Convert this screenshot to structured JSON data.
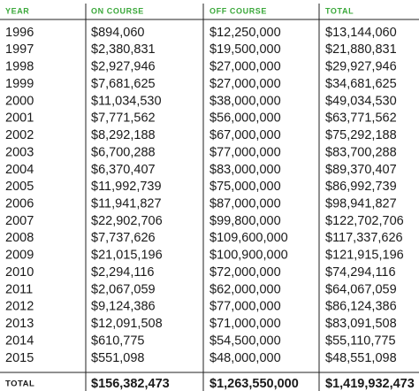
{
  "table": {
    "columns": [
      "YEAR",
      "ON COURSE",
      "OFF COURSE",
      "TOTAL"
    ],
    "rows": [
      [
        "1996",
        "$894,060",
        "$12,250,000",
        "$13,144,060"
      ],
      [
        "1997",
        "$2,380,831",
        "$19,500,000",
        "$21,880,831"
      ],
      [
        "1998",
        "$2,927,946",
        "$27,000,000",
        "$29,927,946"
      ],
      [
        "1999",
        "$7,681,625",
        "$27,000,000",
        "$34,681,625"
      ],
      [
        "2000",
        "$11,034,530",
        "$38,000,000",
        "$49,034,530"
      ],
      [
        "2001",
        "$7,771,562",
        "$56,000,000",
        "$63,771,562"
      ],
      [
        "2002",
        "$8,292,188",
        "$67,000,000",
        "$75,292,188"
      ],
      [
        "2003",
        "$6,700,288",
        "$77,000,000",
        "$83,700,288"
      ],
      [
        "2004",
        "$6,370,407",
        "$83,000,000",
        "$89,370,407"
      ],
      [
        "2005",
        "$11,992,739",
        "$75,000,000",
        "$86,992,739"
      ],
      [
        "2006",
        "$11,941,827",
        "$87,000,000",
        "$98,941,827"
      ],
      [
        "2007",
        "$22,902,706",
        "$99,800,000",
        "$122,702,706"
      ],
      [
        "2008",
        "$7,737,626",
        "$109,600,000",
        "$117,337,626"
      ],
      [
        "2009",
        "$21,015,196",
        "$100,900,000",
        "$121,915,196"
      ],
      [
        "2010",
        "$2,294,116",
        "$72,000,000",
        "$74,294,116"
      ],
      [
        "2011",
        "$2,067,059",
        "$62,000,000",
        "$64,067,059"
      ],
      [
        "2012",
        "$9,124,386",
        "$77,000,000",
        "$86,124,386"
      ],
      [
        "2013",
        "$12,091,508",
        "$71,000,000",
        "$83,091,508"
      ],
      [
        "2014",
        "$610,775",
        "$54,500,000",
        "$55,110,775"
      ],
      [
        "2015",
        "$551,098",
        "$48,000,000",
        "$48,551,098"
      ]
    ],
    "total": [
      "TOTAL",
      "$156,382,473",
      "$1,263,550,000",
      "$1,419,932,473"
    ]
  }
}
